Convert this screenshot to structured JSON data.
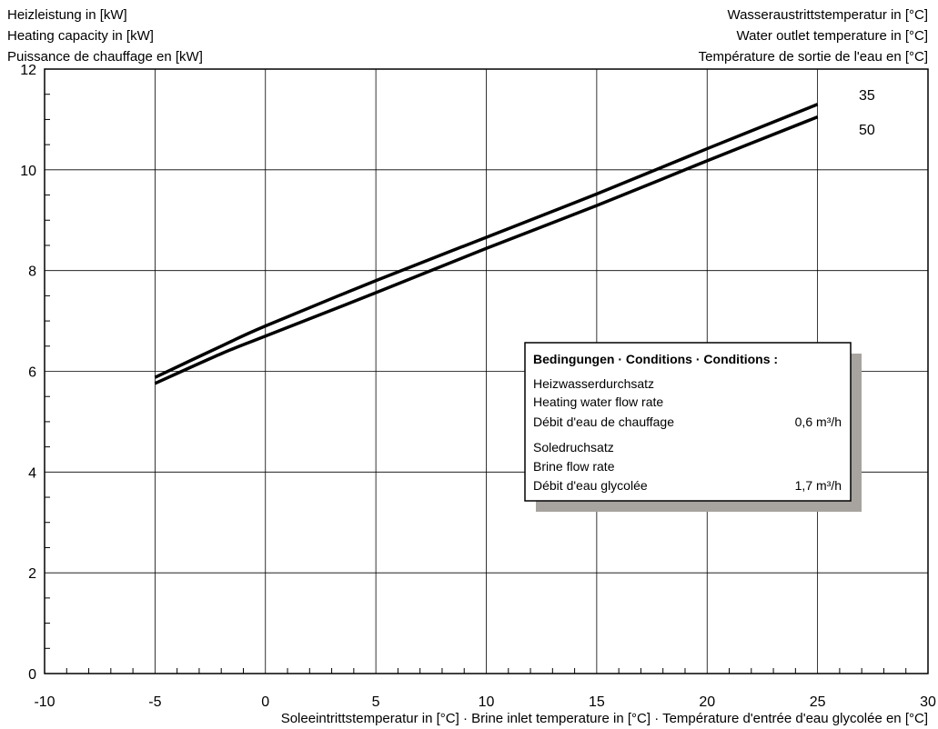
{
  "chart_data": {
    "type": "line",
    "ylabel_lines": [
      "Heizleistung in [kW]",
      "Heating capacity in [kW]",
      "Puissance de chauffage en [kW]"
    ],
    "legend_title_lines": [
      "Wasseraustrittstemperatur in [°C]",
      "Water outlet temperature in [°C]",
      "Température de sortie de l'eau en [°C]"
    ],
    "xlabel": "Soleeintrittstemperatur in [°C] · Brine inlet temperature in [°C] · Température d'entrée d'eau glycolée en [°C]",
    "xlim": [
      -10,
      30
    ],
    "ylim": [
      0,
      12
    ],
    "x_ticks": [
      -10,
      -5,
      0,
      5,
      10,
      15,
      20,
      25,
      30
    ],
    "y_ticks": [
      0,
      2,
      4,
      6,
      8,
      10,
      12
    ],
    "x_tick_labels": [
      "-10",
      "-5",
      "0",
      "5",
      "10",
      "15",
      "20",
      "25",
      "30"
    ],
    "y_tick_labels": [
      "0",
      "2",
      "4",
      "6",
      "8",
      "10",
      "12"
    ],
    "grid": true,
    "series": [
      {
        "name": "35",
        "x": [
          -5,
          -2,
          0,
          5,
          10,
          15,
          20,
          25
        ],
        "y": [
          5.88,
          6.5,
          6.9,
          7.8,
          8.66,
          9.52,
          10.42,
          11.3
        ]
      },
      {
        "name": "50",
        "x": [
          -5,
          -2,
          0,
          5,
          10,
          15,
          20,
          25
        ],
        "y": [
          5.76,
          6.35,
          6.7,
          7.56,
          8.44,
          9.29,
          10.18,
          11.05
        ]
      }
    ],
    "conditions": {
      "title": "Bedingungen · Conditions · Conditions :",
      "heating_lines": [
        "Heizwasserdurchsatz",
        "Heating water flow rate",
        "Débit d'eau de chauffage"
      ],
      "heating_value": "0,6 m³/h",
      "brine_lines": [
        "Soledruchsatz",
        "Brine flow rate",
        "Débit d'eau glycolée"
      ],
      "brine_value": "1,7 m³/h"
    }
  }
}
